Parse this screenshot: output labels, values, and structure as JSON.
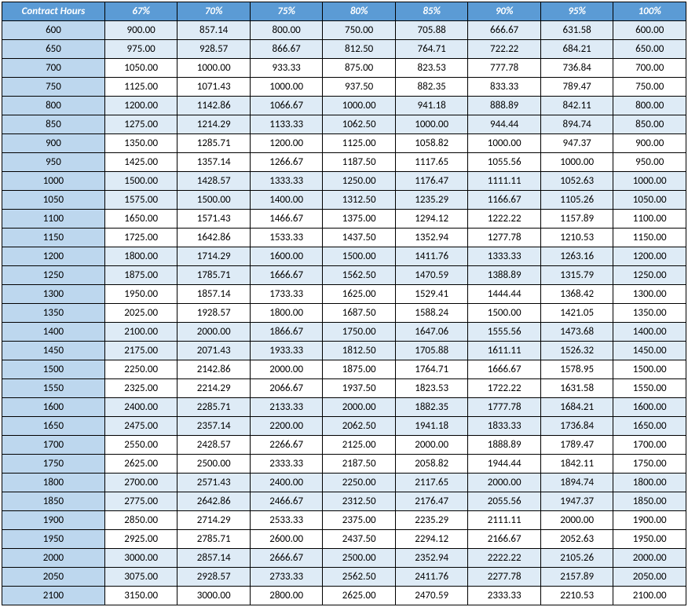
{
  "table": {
    "header_bg": "#5b9bd5",
    "header_fg": "#ffffff",
    "firstcol_bg": "#bdd7ee",
    "band_bg": "#deebf6",
    "plain_bg": "#ffffff",
    "border_color": "#000000",
    "font_size": 13,
    "columns": [
      "Contract Hours",
      "67%",
      "70%",
      "75%",
      "80%",
      "85%",
      "90%",
      "95%",
      "100%"
    ],
    "rows": [
      [
        "600",
        "900.00",
        "857.14",
        "800.00",
        "750.00",
        "705.88",
        "666.67",
        "631.58",
        "600.00"
      ],
      [
        "650",
        "975.00",
        "928.57",
        "866.67",
        "812.50",
        "764.71",
        "722.22",
        "684.21",
        "650.00"
      ],
      [
        "700",
        "1050.00",
        "1000.00",
        "933.33",
        "875.00",
        "823.53",
        "777.78",
        "736.84",
        "700.00"
      ],
      [
        "750",
        "1125.00",
        "1071.43",
        "1000.00",
        "937.50",
        "882.35",
        "833.33",
        "789.47",
        "750.00"
      ],
      [
        "800",
        "1200.00",
        "1142.86",
        "1066.67",
        "1000.00",
        "941.18",
        "888.89",
        "842.11",
        "800.00"
      ],
      [
        "850",
        "1275.00",
        "1214.29",
        "1133.33",
        "1062.50",
        "1000.00",
        "944.44",
        "894.74",
        "850.00"
      ],
      [
        "900",
        "1350.00",
        "1285.71",
        "1200.00",
        "1125.00",
        "1058.82",
        "1000.00",
        "947.37",
        "900.00"
      ],
      [
        "950",
        "1425.00",
        "1357.14",
        "1266.67",
        "1187.50",
        "1117.65",
        "1055.56",
        "1000.00",
        "950.00"
      ],
      [
        "1000",
        "1500.00",
        "1428.57",
        "1333.33",
        "1250.00",
        "1176.47",
        "1111.11",
        "1052.63",
        "1000.00"
      ],
      [
        "1050",
        "1575.00",
        "1500.00",
        "1400.00",
        "1312.50",
        "1235.29",
        "1166.67",
        "1105.26",
        "1050.00"
      ],
      [
        "1100",
        "1650.00",
        "1571.43",
        "1466.67",
        "1375.00",
        "1294.12",
        "1222.22",
        "1157.89",
        "1100.00"
      ],
      [
        "1150",
        "1725.00",
        "1642.86",
        "1533.33",
        "1437.50",
        "1352.94",
        "1277.78",
        "1210.53",
        "1150.00"
      ],
      [
        "1200",
        "1800.00",
        "1714.29",
        "1600.00",
        "1500.00",
        "1411.76",
        "1333.33",
        "1263.16",
        "1200.00"
      ],
      [
        "1250",
        "1875.00",
        "1785.71",
        "1666.67",
        "1562.50",
        "1470.59",
        "1388.89",
        "1315.79",
        "1250.00"
      ],
      [
        "1300",
        "1950.00",
        "1857.14",
        "1733.33",
        "1625.00",
        "1529.41",
        "1444.44",
        "1368.42",
        "1300.00"
      ],
      [
        "1350",
        "2025.00",
        "1928.57",
        "1800.00",
        "1687.50",
        "1588.24",
        "1500.00",
        "1421.05",
        "1350.00"
      ],
      [
        "1400",
        "2100.00",
        "2000.00",
        "1866.67",
        "1750.00",
        "1647.06",
        "1555.56",
        "1473.68",
        "1400.00"
      ],
      [
        "1450",
        "2175.00",
        "2071.43",
        "1933.33",
        "1812.50",
        "1705.88",
        "1611.11",
        "1526.32",
        "1450.00"
      ],
      [
        "1500",
        "2250.00",
        "2142.86",
        "2000.00",
        "1875.00",
        "1764.71",
        "1666.67",
        "1578.95",
        "1500.00"
      ],
      [
        "1550",
        "2325.00",
        "2214.29",
        "2066.67",
        "1937.50",
        "1823.53",
        "1722.22",
        "1631.58",
        "1550.00"
      ],
      [
        "1600",
        "2400.00",
        "2285.71",
        "2133.33",
        "2000.00",
        "1882.35",
        "1777.78",
        "1684.21",
        "1600.00"
      ],
      [
        "1650",
        "2475.00",
        "2357.14",
        "2200.00",
        "2062.50",
        "1941.18",
        "1833.33",
        "1736.84",
        "1650.00"
      ],
      [
        "1700",
        "2550.00",
        "2428.57",
        "2266.67",
        "2125.00",
        "2000.00",
        "1888.89",
        "1789.47",
        "1700.00"
      ],
      [
        "1750",
        "2625.00",
        "2500.00",
        "2333.33",
        "2187.50",
        "2058.82",
        "1944.44",
        "1842.11",
        "1750.00"
      ],
      [
        "1800",
        "2700.00",
        "2571.43",
        "2400.00",
        "2250.00",
        "2117.65",
        "2000.00",
        "1894.74",
        "1800.00"
      ],
      [
        "1850",
        "2775.00",
        "2642.86",
        "2466.67",
        "2312.50",
        "2176.47",
        "2055.56",
        "1947.37",
        "1850.00"
      ],
      [
        "1900",
        "2850.00",
        "2714.29",
        "2533.33",
        "2375.00",
        "2235.29",
        "2111.11",
        "2000.00",
        "1900.00"
      ],
      [
        "1950",
        "2925.00",
        "2785.71",
        "2600.00",
        "2437.50",
        "2294.12",
        "2166.67",
        "2052.63",
        "1950.00"
      ],
      [
        "2000",
        "3000.00",
        "2857.14",
        "2666.67",
        "2500.00",
        "2352.94",
        "2222.22",
        "2105.26",
        "2000.00"
      ],
      [
        "2050",
        "3075.00",
        "2928.57",
        "2733.33",
        "2562.50",
        "2411.76",
        "2277.78",
        "2157.89",
        "2050.00"
      ],
      [
        "2100",
        "3150.00",
        "3000.00",
        "2800.00",
        "2625.00",
        "2470.59",
        "2333.33",
        "2210.53",
        "2100.00"
      ]
    ]
  }
}
